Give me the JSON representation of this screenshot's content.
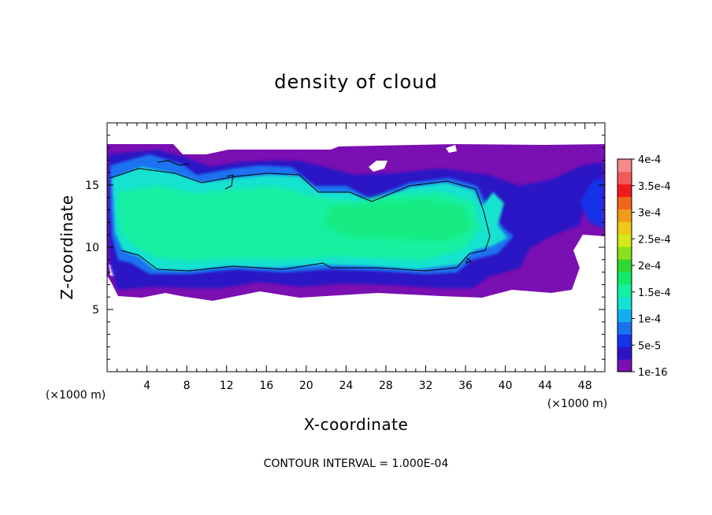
{
  "chart_data": {
    "type": "heatmap",
    "title": "density of cloud",
    "xlabel": "X-coordinate",
    "ylabel": "Z-coordinate",
    "x_unit": "(×1000 m)",
    "z_unit": "(×1000 m)",
    "xlim": [
      0,
      50
    ],
    "ylim": [
      0,
      20
    ],
    "x_ticks": [
      4,
      8,
      12,
      16,
      20,
      24,
      28,
      32,
      36,
      40,
      44,
      48
    ],
    "y_ticks": [
      5,
      10,
      15
    ],
    "note": "CONTOUR INTERVAL = 1.000E-04",
    "colorbar": {
      "labels": [
        "1e-16",
        "5e-5",
        "1e-4",
        "1.5e-4",
        "2e-4",
        "2.5e-4",
        "3e-4",
        "3.5e-4",
        "4e-4"
      ],
      "colors": [
        "#7a0fb2",
        "#2a14c4",
        "#1533e8",
        "#1a72f0",
        "#12aef0",
        "#12e2d0",
        "#12f0a0",
        "#12e86a",
        "#2ed82e",
        "#88e01a",
        "#d4e81a",
        "#f0c81a",
        "#f09a1a",
        "#f0661a",
        "#f01a1a",
        "#f25a5a",
        "#f58a8a"
      ]
    },
    "cloud_layer": {
      "base_z": 6.2,
      "top_z": 18.2,
      "core_value": "1.5e-4 to 2e-4",
      "core_x_range": [
        1,
        38
      ],
      "core_z_range": [
        8.2,
        16.5
      ]
    }
  }
}
